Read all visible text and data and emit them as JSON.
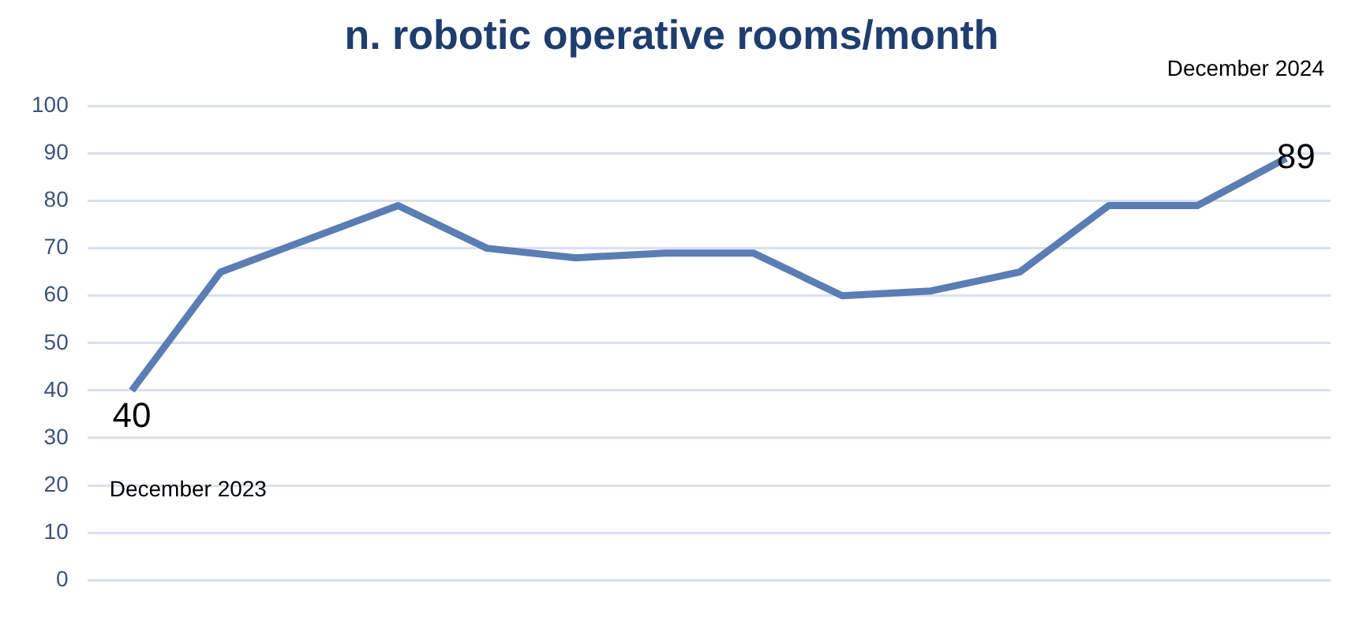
{
  "chart_data": {
    "type": "line",
    "title": "n. robotic operative rooms/month",
    "categories": [
      null,
      null,
      null,
      null,
      null,
      null,
      null,
      null,
      null,
      null,
      null,
      null,
      null,
      null
    ],
    "series": [
      {
        "color": "#5a7db4",
        "values": [
          40,
          65,
          72,
          79,
          70,
          68,
          69,
          69,
          60,
          61,
          65,
          79,
          79,
          89
        ],
        "value_labels": [
          "40",
          null,
          null,
          null,
          null,
          null,
          null,
          null,
          null,
          null,
          null,
          null,
          null,
          "89"
        ]
      }
    ],
    "annotations": [
      "December 2023",
      "December 2024"
    ],
    "ylim": [
      0,
      100
    ],
    "yticks": [
      0,
      10,
      20,
      30,
      40,
      50,
      60,
      70,
      80,
      90,
      100
    ],
    "grid": "y",
    "legend": false,
    "marker": "none",
    "line_style": "solid"
  }
}
